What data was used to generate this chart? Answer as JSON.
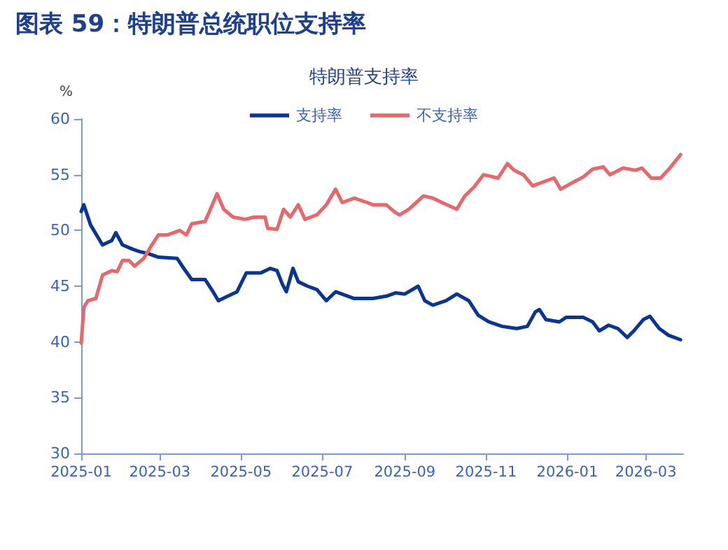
{
  "chart_data": {
    "type": "line",
    "title": "图表 59：特朗普总统职位支持率",
    "subtitle": "特朗普支持率",
    "ylabel": "%",
    "xlim": [
      "2025-01-01",
      "2026-03-29"
    ],
    "xticks": [
      {
        "value": "2025-01-01",
        "label": "2025-01"
      },
      {
        "value": "2025-03-01",
        "label": "2025-03"
      },
      {
        "value": "2025-05-01",
        "label": "2025-05"
      },
      {
        "value": "2025-07-01",
        "label": "2025-07"
      },
      {
        "value": "2025-09-01",
        "label": "2025-09"
      },
      {
        "value": "2025-11-01",
        "label": "2025-11"
      },
      {
        "value": "2026-01-01",
        "label": "2026-01"
      },
      {
        "value": "2026-03-01",
        "label": "2026-03"
      }
    ],
    "ylim": [
      30,
      60
    ],
    "yticks": [
      30,
      35,
      40,
      45,
      50,
      55,
      60
    ],
    "grid": false,
    "legend": "top",
    "marker": "none",
    "line_style": "solid",
    "series": [
      {
        "name": "支持率",
        "color": "#0a3592",
        "x": [
          "2025-01-01",
          "2025-01-03",
          "2025-01-08",
          "2025-01-17",
          "2025-01-24",
          "2025-01-27",
          "2025-02-01",
          "2025-02-09",
          "2025-02-14",
          "2025-02-21",
          "2025-02-28",
          "2025-03-14",
          "2025-03-19",
          "2025-03-25",
          "2025-04-04",
          "2025-04-10",
          "2025-04-14",
          "2025-04-21",
          "2025-04-28",
          "2025-05-05",
          "2025-05-16",
          "2025-05-23",
          "2025-05-28",
          "2025-06-01",
          "2025-06-04",
          "2025-06-09",
          "2025-06-13",
          "2025-06-20",
          "2025-06-27",
          "2025-07-04",
          "2025-07-11",
          "2025-07-25",
          "2025-08-08",
          "2025-08-18",
          "2025-08-25",
          "2025-09-01",
          "2025-09-11",
          "2025-09-16",
          "2025-09-22",
          "2025-10-02",
          "2025-10-10",
          "2025-10-19",
          "2025-10-26",
          "2025-11-03",
          "2025-11-13",
          "2025-11-24",
          "2025-12-02",
          "2025-12-08",
          "2025-12-11",
          "2025-12-16",
          "2025-12-26",
          "2025-12-31",
          "2026-01-13",
          "2026-01-20",
          "2026-01-25",
          "2026-02-01",
          "2026-02-08",
          "2026-02-15",
          "2026-02-20",
          "2026-02-27",
          "2026-03-04",
          "2026-03-11",
          "2026-03-18",
          "2026-03-27"
        ],
        "values": [
          51.7,
          52.3,
          50.5,
          48.7,
          49.1,
          49.8,
          48.7,
          48.3,
          48.1,
          47.9,
          47.6,
          47.5,
          46.6,
          45.6,
          45.6,
          44.5,
          43.7,
          44.1,
          44.5,
          46.2,
          46.2,
          46.6,
          46.4,
          45.2,
          44.5,
          46.6,
          45.4,
          45.0,
          44.7,
          43.7,
          44.5,
          43.9,
          43.9,
          44.1,
          44.4,
          44.3,
          45.0,
          43.7,
          43.3,
          43.7,
          44.3,
          43.7,
          42.4,
          41.8,
          41.4,
          41.2,
          41.4,
          42.7,
          42.9,
          42.0,
          41.8,
          42.2,
          42.2,
          41.8,
          41.0,
          41.5,
          41.2,
          40.4,
          41.0,
          42.0,
          42.3,
          41.2,
          40.6,
          40.2
        ]
      },
      {
        "name": "不支持率",
        "color": "#e8676b",
        "x": [
          "2025-01-01",
          "2025-01-03",
          "2025-01-06",
          "2025-01-12",
          "2025-01-17",
          "2025-01-24",
          "2025-01-28",
          "2025-02-01",
          "2025-02-06",
          "2025-02-10",
          "2025-02-17",
          "2025-02-22",
          "2025-02-28",
          "2025-03-07",
          "2025-03-16",
          "2025-03-21",
          "2025-03-25",
          "2025-04-04",
          "2025-04-08",
          "2025-04-13",
          "2025-04-18",
          "2025-04-25",
          "2025-05-04",
          "2025-05-11",
          "2025-05-19",
          "2025-05-21",
          "2025-05-28",
          "2025-06-02",
          "2025-06-07",
          "2025-06-13",
          "2025-06-18",
          "2025-06-27",
          "2025-07-04",
          "2025-07-11",
          "2025-07-16",
          "2025-07-25",
          "2025-08-04",
          "2025-08-08",
          "2025-08-18",
          "2025-08-25",
          "2025-08-28",
          "2025-09-04",
          "2025-09-15",
          "2025-09-22",
          "2025-09-29",
          "2025-10-10",
          "2025-10-16",
          "2025-10-23",
          "2025-10-30",
          "2025-11-10",
          "2025-11-17",
          "2025-11-22",
          "2025-11-29",
          "2025-12-06",
          "2025-12-15",
          "2025-12-22",
          "2025-12-27",
          "2026-01-05",
          "2026-01-13",
          "2026-01-20",
          "2026-01-28",
          "2026-02-02",
          "2026-02-12",
          "2026-02-21",
          "2026-02-26",
          "2026-03-05",
          "2026-03-12",
          "2026-03-19",
          "2026-03-27"
        ],
        "values": [
          39.9,
          43.1,
          43.7,
          43.9,
          46.0,
          46.4,
          46.3,
          47.3,
          47.3,
          46.8,
          47.5,
          48.5,
          49.6,
          49.6,
          50.0,
          49.6,
          50.6,
          50.8,
          51.9,
          53.3,
          51.9,
          51.2,
          51.0,
          51.2,
          51.2,
          50.2,
          50.1,
          51.9,
          51.2,
          52.3,
          51.0,
          51.4,
          52.3,
          53.7,
          52.5,
          52.9,
          52.5,
          52.3,
          52.3,
          51.6,
          51.4,
          51.9,
          53.1,
          52.9,
          52.5,
          51.9,
          53.1,
          53.9,
          55.0,
          54.7,
          56.0,
          55.4,
          55.0,
          54.0,
          54.4,
          54.7,
          53.7,
          54.3,
          54.8,
          55.5,
          55.7,
          55.0,
          55.6,
          55.4,
          55.6,
          54.7,
          54.7,
          55.6,
          56.8
        ]
      }
    ]
  }
}
